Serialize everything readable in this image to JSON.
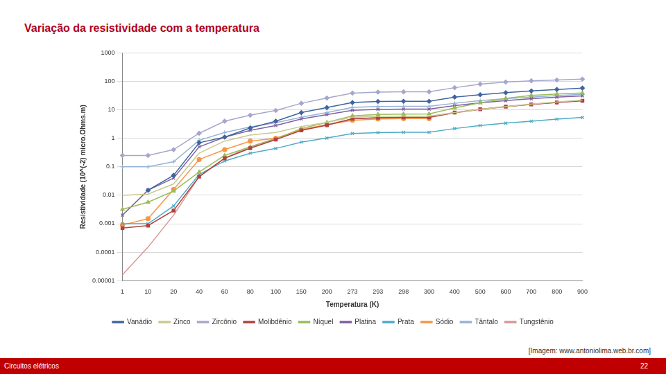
{
  "slide": {
    "title": "Variação da resistividade com a temperatura",
    "source": "[Imagem: www.antoniolima.web.br.com]",
    "footer": "Circuitos elétricos",
    "page": 22
  },
  "chart_data": {
    "type": "line",
    "x_label": "Temperatura (K)",
    "y_label": "Resistividade (10^(-2) micro.Ohms.m)",
    "categories": [
      "1",
      "10",
      "20",
      "40",
      "60",
      "80",
      "100",
      "150",
      "200",
      "273",
      "293",
      "298",
      "300",
      "400",
      "500",
      "600",
      "700",
      "800",
      "900"
    ],
    "log": "y",
    "grid": true,
    "legend": "bottom",
    "ylim": [
      1e-05,
      1000
    ],
    "yticks": [
      1e-05,
      0.0001,
      0.001,
      0.01,
      0.1,
      1,
      10,
      100,
      1000
    ],
    "series": [
      {
        "name": "Vanádio",
        "color": "#3f64a0",
        "marker": "diamond",
        "values": [
          null,
          0.015,
          0.05,
          0.7,
          1.1,
          2.3,
          4,
          8,
          12,
          18,
          19.7,
          20,
          20,
          28,
          34,
          40,
          46,
          52,
          58
        ]
      },
      {
        "name": "Zinco",
        "color": "#c9c98f",
        "marker": "none",
        "values": [
          0.01,
          0.011,
          0.025,
          0.3,
          0.8,
          1.3,
          1.6,
          2.6,
          3.6,
          5.5,
          5.9,
          6,
          6,
          8,
          10.5,
          13,
          16,
          19,
          22
        ]
      },
      {
        "name": "Zircônio",
        "color": "#a6a6cc",
        "marker": "diamond",
        "values": [
          0.25,
          0.25,
          0.4,
          1.5,
          4,
          6.5,
          9.5,
          17,
          26,
          38.8,
          42,
          43,
          43,
          60,
          80,
          95,
          105,
          112,
          120
        ]
      },
      {
        "name": "Molibdênio",
        "color": "#b0413e",
        "marker": "square",
        "values": [
          0.0007,
          0.00086,
          0.0029,
          0.045,
          0.2,
          0.45,
          0.9,
          1.9,
          2.9,
          4.85,
          5.3,
          5.4,
          5.4,
          8,
          10.5,
          13,
          15.6,
          18.2,
          20.8
        ]
      },
      {
        "name": "Níquel",
        "color": "#9bbb59",
        "marker": "triangle",
        "values": [
          0.0032,
          0.0057,
          0.014,
          0.065,
          0.25,
          0.5,
          0.95,
          2.2,
          3.6,
          6.2,
          6.9,
          7.1,
          7.2,
          11.8,
          17.7,
          25.5,
          32,
          36,
          39
        ]
      },
      {
        "name": "Platina",
        "color": "#7f5f9f",
        "marker": "x",
        "values": [
          0.002,
          0.015,
          0.04,
          0.5,
          1.1,
          1.9,
          2.8,
          4.8,
          6.8,
          9.6,
          10.4,
          10.6,
          10.6,
          14,
          17.7,
          21,
          24.5,
          27.8,
          31
        ]
      },
      {
        "name": "Prata",
        "color": "#4bacc6",
        "marker": "x",
        "values": [
          0.001,
          0.001,
          0.0042,
          0.054,
          0.16,
          0.3,
          0.44,
          0.73,
          1.02,
          1.47,
          1.59,
          1.62,
          1.63,
          2.2,
          2.8,
          3.4,
          4,
          4.7,
          5.4
        ]
      },
      {
        "name": "Sódio",
        "color": "#f79646",
        "marker": "circle",
        "values": [
          0.0009,
          0.0015,
          0.016,
          0.18,
          0.4,
          0.8,
          1,
          2,
          3,
          4.3,
          4.8,
          4.9,
          4.9,
          null,
          null,
          null,
          null,
          null,
          null
        ]
      },
      {
        "name": "Tântalo",
        "color": "#95b3d7",
        "marker": "plus",
        "values": [
          0.1,
          0.1,
          0.15,
          0.85,
          1.6,
          2.5,
          3.5,
          5.5,
          8,
          12.2,
          13.1,
          13.3,
          13.4,
          17,
          21,
          24.5,
          28,
          31.5,
          35
        ]
      },
      {
        "name": "Tungstênio",
        "color": "#d99694",
        "marker": "none",
        "values": [
          1.6e-05,
          0.00015,
          0.002,
          0.045,
          0.2,
          0.5,
          1,
          2,
          3,
          4.8,
          5.3,
          5.4,
          5.4,
          7.8,
          10.3,
          13,
          15.7,
          18.4,
          21
        ]
      }
    ]
  }
}
